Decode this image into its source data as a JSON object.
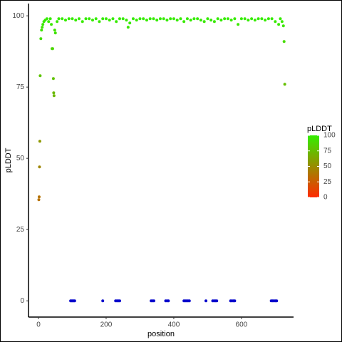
{
  "chart_data": {
    "type": "scatter",
    "x_label": "position",
    "y_label": "pLDDT",
    "xlim": [
      -29.5,
      754
    ],
    "ylim": [
      -5.7,
      104.3
    ],
    "xticks": [
      0,
      200,
      400,
      600
    ],
    "yticks": [
      0,
      25,
      50,
      75,
      100
    ],
    "colorbar": {
      "title": "pLDDT",
      "lim": [
        0,
        100
      ],
      "ticks": [
        0,
        25,
        50,
        75,
        100
      ],
      "low_color": "#ff2a00",
      "high_color": "#33ee00"
    },
    "series": [
      {
        "color_by_value": true,
        "x": [
          1,
          2,
          3,
          4,
          5,
          7,
          9,
          11,
          13,
          16,
          20,
          25,
          30,
          35,
          38,
          40,
          42,
          44,
          45,
          46,
          48,
          50,
          55,
          60,
          70,
          80,
          90,
          100,
          110,
          120,
          130,
          140,
          150,
          160,
          170,
          180,
          190,
          200,
          210,
          220,
          230,
          240,
          250,
          260,
          265,
          270,
          280,
          290,
          300,
          310,
          320,
          330,
          340,
          350,
          360,
          370,
          380,
          390,
          400,
          410,
          420,
          430,
          440,
          450,
          460,
          470,
          480,
          490,
          500,
          510,
          520,
          530,
          540,
          550,
          560,
          570,
          580,
          590,
          600,
          610,
          620,
          630,
          640,
          650,
          660,
          670,
          680,
          690,
          700,
          710,
          715,
          720,
          724,
          726,
          728
        ],
        "values": [
          35.5,
          36.5,
          47,
          56,
          79,
          92,
          95,
          96,
          97,
          98,
          98.5,
          99,
          98,
          99,
          97,
          88.5,
          88.5,
          78,
          73,
          72,
          95,
          94,
          98,
          99,
          99,
          98.5,
          99,
          99,
          98.5,
          99,
          98,
          99,
          99,
          98.5,
          99,
          98,
          99,
          99,
          98.5,
          99,
          98,
          99,
          99,
          98.5,
          96,
          97.5,
          99,
          98.5,
          99,
          99,
          98.5,
          99,
          99,
          98.5,
          99,
          99,
          98.5,
          99,
          99,
          98.5,
          99,
          98,
          99,
          98.5,
          99,
          99,
          98.5,
          98,
          99,
          98.5,
          98,
          99,
          98.5,
          99,
          99,
          98.5,
          99,
          97,
          99,
          99,
          98.5,
          99,
          98.5,
          99,
          99,
          98.5,
          99,
          99,
          98,
          97,
          99,
          98,
          96.5,
          91,
          76
        ]
      },
      {
        "color": "#0000cc",
        "x": [
          95,
          98,
          101,
          104,
          107,
          190,
          228,
          232,
          236,
          240,
          333,
          337,
          341,
          376,
          380,
          384,
          430,
          434,
          438,
          442,
          446,
          495,
          515,
          519,
          523,
          527,
          568,
          572,
          576,
          580,
          688,
          692,
          696,
          700,
          704
        ],
        "values": [
          0,
          0,
          0,
          0,
          0,
          0,
          0,
          0,
          0,
          0,
          0,
          0,
          0,
          0,
          0,
          0,
          0,
          0,
          0,
          0,
          0,
          0,
          0,
          0,
          0,
          0,
          0,
          0,
          0,
          0,
          0,
          0,
          0,
          0,
          0
        ]
      }
    ]
  }
}
